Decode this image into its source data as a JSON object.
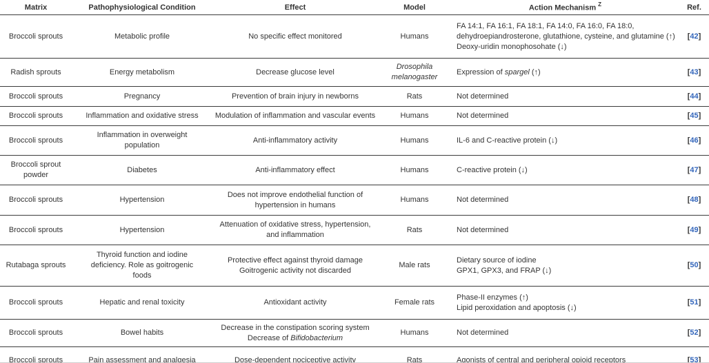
{
  "table": {
    "headers": {
      "matrix": "Matrix",
      "condition": "Pathophysiological Condition",
      "effect": "Effect",
      "model": "Model",
      "action": "Action Mechanism",
      "action_sup": "Z",
      "ref": "Ref."
    },
    "ref_bracket_open": "[",
    "ref_bracket_close": "]",
    "colors": {
      "text": "#333333",
      "link_blue": "#3366bb",
      "rule_dark": "#3a3a3a",
      "rule_light": "#cfcfcf"
    },
    "rows": [
      {
        "matrix": "Broccoli sprouts",
        "condition": "Metabolic profile",
        "effect": "No specific effect monitored",
        "model": "Humans",
        "action": "FA 14:1, FA 16:1, FA 18:1, FA 14:0, FA 16:0, FA 18:0, dehydroepiandrosterone, glutathione, cysteine, and glutamine (↑)\nDeoxy-uridin monophosohate (↓)",
        "ref": "42"
      },
      {
        "matrix": "Radish sprouts",
        "condition": "Energy metabolism",
        "effect": "Decrease glucose level",
        "model": "Drosophila melanogaster",
        "action_pre": "Expression of ",
        "action_it": "spargel",
        "action_post": " (↑)",
        "ref": "43"
      },
      {
        "matrix": "Broccoli sprouts",
        "condition": "Pregnancy",
        "effect": "Prevention of brain injury in newborns",
        "model": "Rats",
        "action": "Not determined",
        "ref": "44"
      },
      {
        "matrix": "Broccoli sprouts",
        "condition": "Inflammation and oxidative stress",
        "effect": "Modulation of inflammation and vascular events",
        "model": "Humans",
        "action": "Not determined",
        "ref": "45"
      },
      {
        "matrix": "Broccoli sprouts",
        "condition": "Inflammation in overweight population",
        "effect": "Anti-inflammatory activity",
        "model": "Humans",
        "action": "IL-6 and C-reactive protein (↓)",
        "ref": "46"
      },
      {
        "matrix": "Broccoli sprout powder",
        "condition": "Diabetes",
        "effect": "Anti-inflammatory effect",
        "model": "Humans",
        "action": "C-reactive protein (↓)",
        "ref": "47"
      },
      {
        "matrix": "Broccoli sprouts",
        "condition": "Hypertension",
        "effect": "Does not improve endothelial function of hypertension in humans",
        "model": "Humans",
        "action": "Not determined",
        "ref": "48"
      },
      {
        "matrix": "Broccoli sprouts",
        "condition": "Hypertension",
        "effect": "Attenuation of oxidative stress, hypertension, and inflammation",
        "model": "Rats",
        "action": "Not determined",
        "ref": "49"
      },
      {
        "matrix": "Rutabaga sprouts",
        "condition": "Thyroid function and iodine deficiency. Role as goitrogenic foods",
        "effect": "Protective effect against thyroid damage\nGoitrogenic activity not discarded",
        "model": "Male rats",
        "action": "Dietary source of iodine\nGPX1, GPX3, and FRAP (↓)",
        "ref": "50"
      },
      {
        "matrix": "Broccoli sprouts",
        "condition": "Hepatic and renal toxicity",
        "effect": "Antioxidant activity",
        "model": "Female rats",
        "action": "Phase-II enzymes (↑)\nLipid peroxidation and apoptosis (↓)",
        "ref": "51"
      },
      {
        "matrix": "Broccoli sprouts",
        "condition": "Bowel habits",
        "effect_line1": "Decrease in the constipation scoring system",
        "effect_pre": "Decrease of ",
        "effect_it": "Bifidobacterium",
        "model": "Humans",
        "action": "Not determined",
        "ref": "52"
      },
      {
        "matrix": "Broccoli sprouts",
        "condition": "Pain assessment and analgesia",
        "effect": "Dose-dependent nociceptive activity",
        "model": "Rats",
        "action": "Agonists of central and peripheral opioid receptors",
        "ref": "53"
      }
    ]
  }
}
